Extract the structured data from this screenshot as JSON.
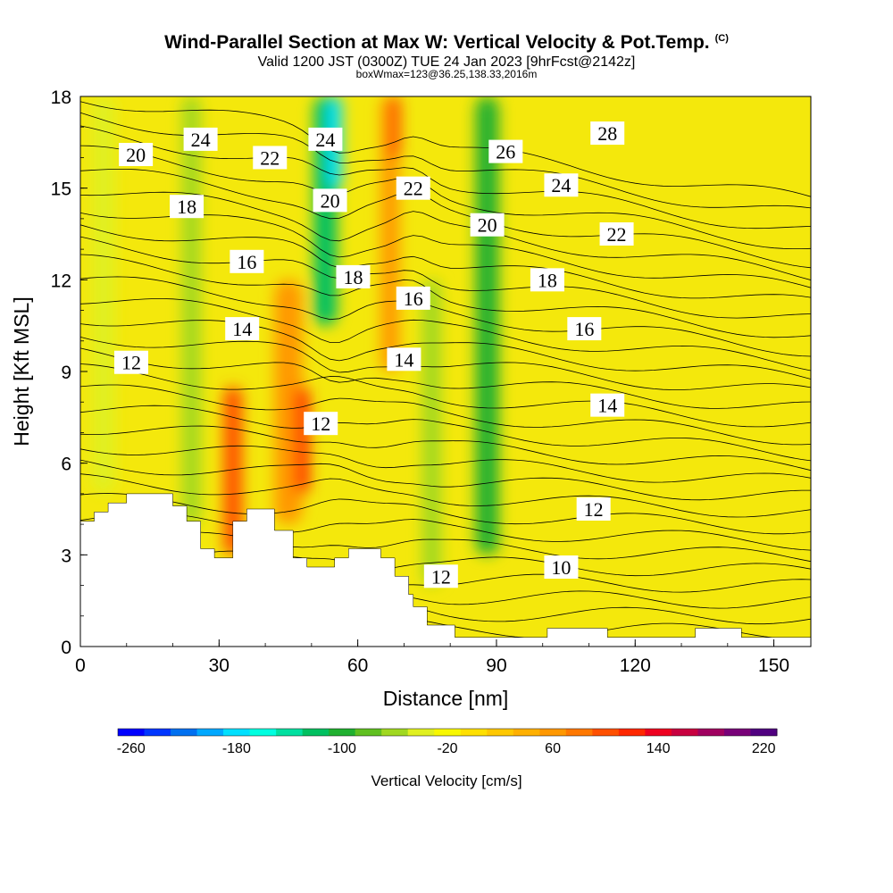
{
  "header": {
    "title": "Wind-Parallel Section at Max W: Vertical Velocity & Pot.Temp.",
    "copyright": "(C)",
    "valid_line": "Valid 1200 JST (0300Z) TUE 24 Jan 2023 [9hrFcst@2142z]",
    "box_line": "boxWmax=123@36.25,138.33,2016m"
  },
  "chart_data": {
    "type": "heatmap",
    "title": "Wind-Parallel Section at Max W: Vertical Velocity & Pot.Temp.",
    "xlabel": "Distance [nm]",
    "ylabel": "Height [Kft MSL]",
    "xlim": [
      0,
      158
    ],
    "ylim": [
      0,
      18
    ],
    "x_ticks": [
      0,
      30,
      60,
      90,
      120,
      150
    ],
    "y_ticks": [
      0,
      3,
      6,
      9,
      12,
      15,
      18
    ],
    "colorbar": {
      "label": "Vertical Velocity [cm/s]",
      "tick_labels": [
        -260,
        -180,
        -100,
        -20,
        60,
        140,
        220
      ],
      "colors": [
        "#0000ff",
        "#0036ff",
        "#0070f0",
        "#00a8ff",
        "#00e0ff",
        "#00ffe0",
        "#00e0a0",
        "#00c060",
        "#20b030",
        "#60c020",
        "#a0d820",
        "#e0f020",
        "#f8f800",
        "#ffe000",
        "#ffc800",
        "#ffb000",
        "#ff9800",
        "#ff7800",
        "#ff5000",
        "#ff2800",
        "#ee0020",
        "#c80040",
        "#a00060",
        "#780078",
        "#500080"
      ]
    },
    "vertical_velocity_bands": [
      {
        "x": 5,
        "w": 5,
        "y0": 5,
        "y1": 18,
        "value": -40
      },
      {
        "x": 24,
        "w": 4,
        "y0": 4,
        "y1": 18,
        "value": -60
      },
      {
        "x": 33,
        "w": 4,
        "y0": 3,
        "y1": 8.5,
        "value": 100
      },
      {
        "x": 45,
        "w": 6,
        "y0": 4,
        "y1": 12,
        "value": 60
      },
      {
        "x": 48,
        "w": 3,
        "y0": 5,
        "y1": 8.5,
        "value": 130
      },
      {
        "x": 53,
        "w": 5,
        "y0": 10.5,
        "y1": 18,
        "value": -120
      },
      {
        "x": 55,
        "w": 3,
        "y0": 15,
        "y1": 18,
        "value": -180
      },
      {
        "x": 67,
        "w": 4,
        "y0": 9,
        "y1": 18,
        "value": 60
      },
      {
        "x": 68,
        "w": 2,
        "y0": 16,
        "y1": 18,
        "value": 130
      },
      {
        "x": 76,
        "w": 4,
        "y0": 2,
        "y1": 12,
        "value": -60
      },
      {
        "x": 88,
        "w": 5,
        "y0": 3,
        "y1": 18,
        "value": -90
      }
    ],
    "theta_contour_labels": [
      {
        "x": 12,
        "y": 16.1,
        "label": "20"
      },
      {
        "x": 26,
        "y": 16.6,
        "label": "24"
      },
      {
        "x": 41,
        "y": 16.0,
        "label": "22"
      },
      {
        "x": 53,
        "y": 16.6,
        "label": "24"
      },
      {
        "x": 92,
        "y": 16.2,
        "label": "26"
      },
      {
        "x": 114,
        "y": 16.8,
        "label": "28"
      },
      {
        "x": 23,
        "y": 14.4,
        "label": "18"
      },
      {
        "x": 54,
        "y": 14.6,
        "label": "20"
      },
      {
        "x": 72,
        "y": 15.0,
        "label": "22"
      },
      {
        "x": 88,
        "y": 13.8,
        "label": "20"
      },
      {
        "x": 104,
        "y": 15.1,
        "label": "24"
      },
      {
        "x": 116,
        "y": 13.5,
        "label": "22"
      },
      {
        "x": 36,
        "y": 12.6,
        "label": "16"
      },
      {
        "x": 59,
        "y": 12.1,
        "label": "18"
      },
      {
        "x": 72,
        "y": 11.4,
        "label": "16"
      },
      {
        "x": 101,
        "y": 12.0,
        "label": "18"
      },
      {
        "x": 109,
        "y": 10.4,
        "label": "16"
      },
      {
        "x": 35,
        "y": 10.4,
        "label": "14"
      },
      {
        "x": 70,
        "y": 9.4,
        "label": "14"
      },
      {
        "x": 11,
        "y": 9.3,
        "label": "12"
      },
      {
        "x": 114,
        "y": 7.9,
        "label": "14"
      },
      {
        "x": 52,
        "y": 7.3,
        "label": "12"
      },
      {
        "x": 111,
        "y": 4.5,
        "label": "12"
      },
      {
        "x": 78,
        "y": 2.3,
        "label": "12"
      },
      {
        "x": 104,
        "y": 2.6,
        "label": "10"
      }
    ],
    "terrain": [
      [
        0,
        4.1
      ],
      [
        3,
        4.1
      ],
      [
        3,
        4.4
      ],
      [
        6,
        4.4
      ],
      [
        6,
        4.7
      ],
      [
        10,
        4.7
      ],
      [
        10,
        5.0
      ],
      [
        20,
        5.0
      ],
      [
        20,
        4.6
      ],
      [
        23,
        4.6
      ],
      [
        23,
        4.1
      ],
      [
        26,
        4.1
      ],
      [
        26,
        3.2
      ],
      [
        29,
        3.2
      ],
      [
        29,
        2.9
      ],
      [
        33,
        2.9
      ],
      [
        33,
        4.1
      ],
      [
        36,
        4.1
      ],
      [
        36,
        4.5
      ],
      [
        42,
        4.5
      ],
      [
        42,
        3.8
      ],
      [
        46,
        3.8
      ],
      [
        46,
        2.9
      ],
      [
        49,
        2.9
      ],
      [
        49,
        2.6
      ],
      [
        55,
        2.6
      ],
      [
        55,
        2.9
      ],
      [
        58,
        2.9
      ],
      [
        58,
        3.2
      ],
      [
        65,
        3.2
      ],
      [
        65,
        2.9
      ],
      [
        68,
        2.9
      ],
      [
        68,
        2.3
      ],
      [
        71,
        2.3
      ],
      [
        71,
        1.7
      ],
      [
        72,
        1.7
      ],
      [
        72,
        1.3
      ],
      [
        75,
        1.3
      ],
      [
        75,
        0.7
      ],
      [
        81,
        0.7
      ],
      [
        81,
        0.3
      ],
      [
        101,
        0.3
      ],
      [
        101,
        0.6
      ],
      [
        114,
        0.6
      ],
      [
        114,
        0.3
      ],
      [
        133,
        0.3
      ],
      [
        133,
        0.6
      ],
      [
        143,
        0.6
      ],
      [
        143,
        0.3
      ],
      [
        158,
        0.3
      ]
    ]
  }
}
